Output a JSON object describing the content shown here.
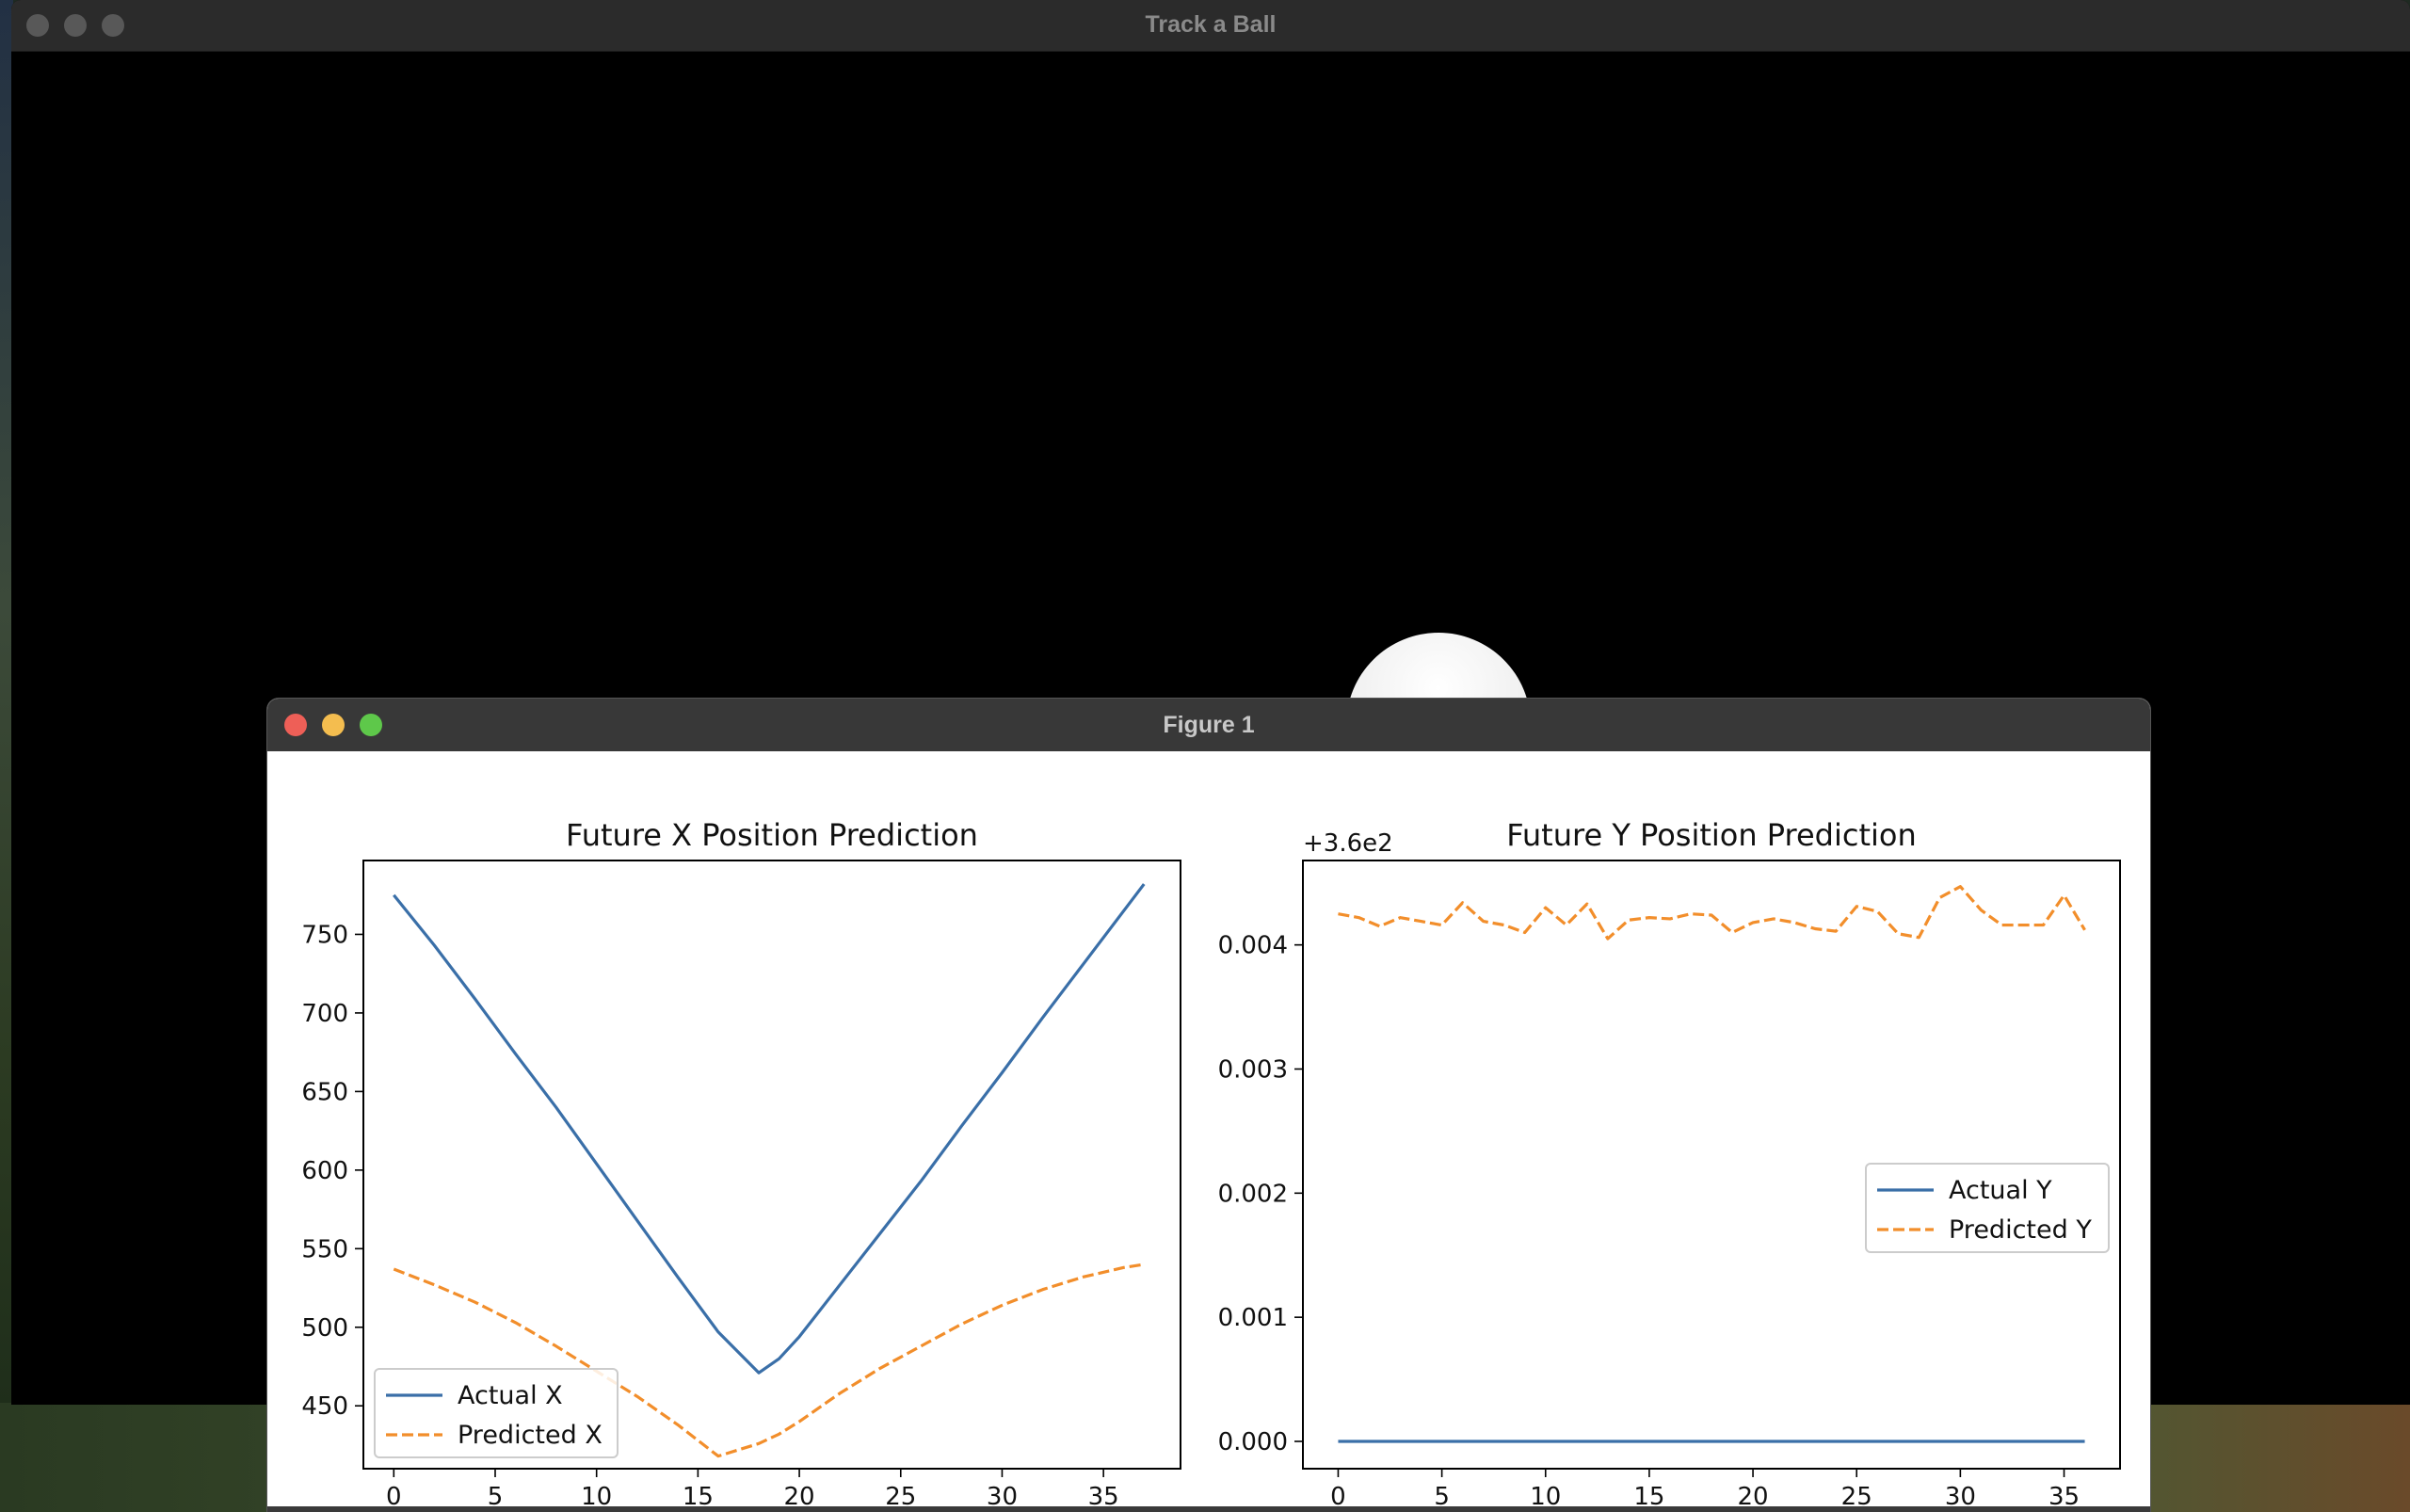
{
  "track_window": {
    "title": "Track a Ball"
  },
  "figure_window": {
    "title": "Figure 1"
  },
  "chart_data": [
    {
      "type": "line",
      "title": "Future X Position Prediction",
      "xlim": [
        -1.5,
        38.8
      ],
      "ylim": [
        410,
        797
      ],
      "xticks": [
        0,
        5,
        10,
        15,
        20,
        25,
        30,
        35
      ],
      "yticks": [
        450,
        500,
        550,
        600,
        650,
        700,
        750
      ],
      "legend": "lower-left",
      "series": [
        {
          "name": "Actual X",
          "color": "#3a6fa8",
          "dash": "solid",
          "x": [
            0,
            2,
            4,
            6,
            8,
            10,
            12,
            14,
            16,
            18,
            19,
            20,
            22,
            24,
            26,
            28,
            30,
            32,
            34,
            36,
            37
          ],
          "y": [
            775,
            743,
            709,
            674,
            640,
            604,
            568,
            532,
            497,
            471,
            480,
            494,
            527,
            560,
            593,
            628,
            662,
            697,
            731,
            765,
            782
          ]
        },
        {
          "name": "Predicted X",
          "color": "#f28e2b",
          "dash": "dashed",
          "x": [
            0,
            2,
            4,
            6,
            8,
            10,
            12,
            14,
            16,
            18,
            19,
            20,
            22,
            24,
            26,
            28,
            30,
            32,
            34,
            36,
            37
          ],
          "y": [
            537,
            527,
            516,
            503,
            488,
            472,
            456,
            438,
            418,
            426,
            432,
            440,
            458,
            474,
            488,
            502,
            514,
            524,
            532,
            538,
            540
          ]
        }
      ]
    },
    {
      "type": "line",
      "title": "Future Y Position Prediction",
      "offset_label": "+3.6e2",
      "xlim": [
        -1.7,
        37.7
      ],
      "ylim": [
        -0.00022,
        0.00468
      ],
      "xticks": [
        0,
        5,
        10,
        15,
        20,
        25,
        30,
        35
      ],
      "yticks": [
        "0.000",
        "0.001",
        "0.002",
        "0.003",
        "0.004"
      ],
      "ytick_values": [
        0,
        0.001,
        0.002,
        0.003,
        0.004
      ],
      "legend": "center-right",
      "series": [
        {
          "name": "Actual Y",
          "color": "#3a6fa8",
          "dash": "solid",
          "x": [
            0,
            36
          ],
          "y": [
            0,
            0
          ]
        },
        {
          "name": "Predicted Y",
          "color": "#f28e2b",
          "dash": "dashed",
          "x": [
            0,
            1,
            2,
            3,
            4,
            5,
            6,
            7,
            8,
            9,
            10,
            11,
            12,
            13,
            14,
            15,
            16,
            17,
            18,
            19,
            20,
            21,
            22,
            23,
            24,
            25,
            26,
            27,
            28,
            29,
            30,
            31,
            32,
            33,
            34,
            35,
            36
          ],
          "y": [
            0.00425,
            0.00422,
            0.00415,
            0.00422,
            0.00419,
            0.00416,
            0.00434,
            0.00419,
            0.00416,
            0.0041,
            0.0043,
            0.00416,
            0.00433,
            0.00405,
            0.0042,
            0.00422,
            0.00421,
            0.00425,
            0.00424,
            0.0041,
            0.00418,
            0.00421,
            0.00418,
            0.00413,
            0.00411,
            0.00431,
            0.00427,
            0.00409,
            0.00406,
            0.00438,
            0.00447,
            0.00428,
            0.00416,
            0.00416,
            0.00416,
            0.0044,
            0.00412
          ]
        }
      ]
    }
  ]
}
